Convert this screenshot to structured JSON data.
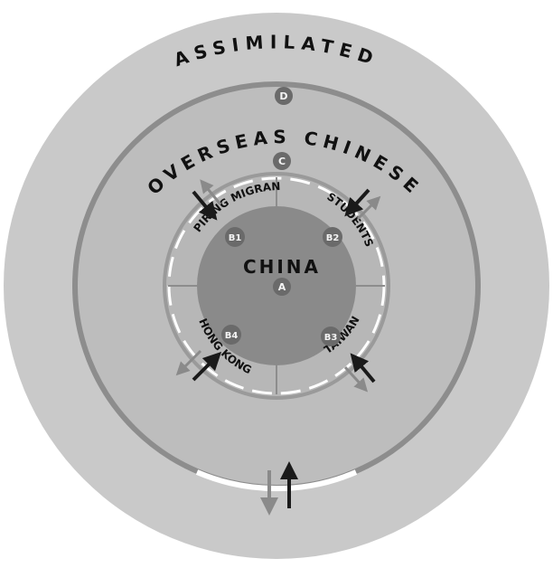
{
  "diagram": {
    "rings": {
      "outer_title": "ASSIMILATED",
      "outer_badge": "D",
      "middle_title": "OVERSEAS CHINESE",
      "middle_badge": "C"
    },
    "core": {
      "title": "CHINA",
      "badge": "A"
    },
    "segments": [
      {
        "label": "ASPIRING MIGRANTS",
        "badge": "B1"
      },
      {
        "label": "STUDENTS",
        "badge": "B2"
      },
      {
        "label": "TAIWAN",
        "badge": "B3"
      },
      {
        "label": "HONG KONG",
        "badge": "B4"
      }
    ]
  },
  "colors": {
    "outer_disc": "#c9c9c9",
    "mid_disc": "#bdbdbd",
    "inner_ring": "#b0b0b0",
    "core": "#8a8a8a",
    "ring_stroke": "#8d8d8d",
    "badge": "#6a6a6a",
    "arrow_dark": "#1a1a1a",
    "arrow_light": "#8a8a8a",
    "dash_white": "#ffffff"
  }
}
